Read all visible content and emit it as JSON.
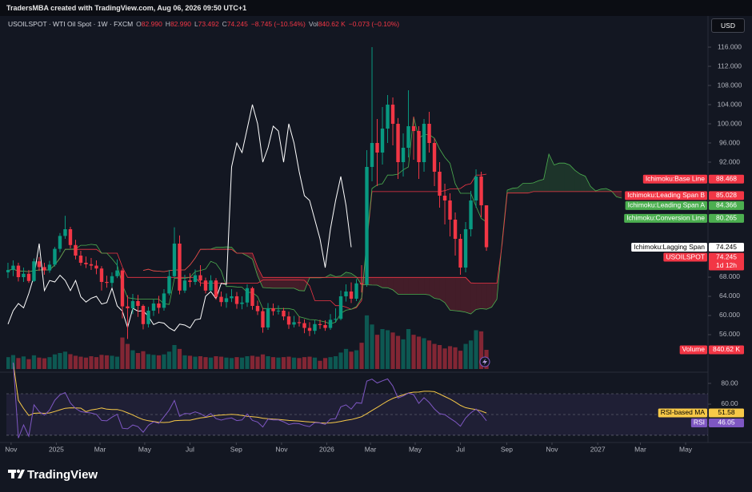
{
  "header": {
    "credit": "TradersMBA created with TradingView.com, Aug 06, 2026 09:50 UTC+1",
    "currency": "USD",
    "brand": "TradingView"
  },
  "chart_data": {
    "type": "candlestick",
    "title": "USOILSPOT · WTI Oil Spot · 1W · FXCM",
    "legend_fields": [
      {
        "key": "O",
        "text": "82.990"
      },
      {
        "key": "H",
        "text": "82.990"
      },
      {
        "key": "L",
        "text": "73.492"
      },
      {
        "key": "C",
        "text": "74.245"
      },
      {
        "text": "−8.745 (−10.54%)"
      },
      {
        "key": "Vol",
        "text": "840.62 K"
      },
      {
        "text": "−0.073 (−0.10%)"
      }
    ],
    "open": [
      69.0,
      69.5,
      70.4,
      68.0,
      68.7,
      67.2,
      71.3,
      70.1,
      69.4,
      70.6,
      73.9,
      76.6,
      78.0,
      74.7,
      72.5,
      71.0,
      70.7,
      70.4,
      69.8,
      67.0,
      66.8,
      68.2,
      69.4,
      61.9,
      61.5,
      63.0,
      62.0,
      58.2,
      61.0,
      62.5,
      61.6,
      64.6,
      68.2,
      75.0,
      65.2,
      67.3,
      67.0,
      68.4,
      67.3,
      65.2,
      67.3,
      63.9,
      62.8,
      63.6,
      64.0,
      62.4,
      62.7,
      65.7,
      62.0,
      60.9,
      57.5,
      61.5,
      60.9,
      61.0,
      59.8,
      58.1,
      58.6,
      58.4,
      57.4,
      56.8,
      58.2,
      58.0,
      57.4,
      59.1,
      59.3,
      64.0,
      65.0,
      63.5,
      66.7,
      66.5,
      91.0,
      96.0,
      94.0,
      99.0,
      104.0,
      100.0,
      92.0,
      95.0,
      99.5,
      98.5,
      92.0,
      100.0,
      96.0,
      90.0,
      85.0,
      84.0,
      80.0,
      76.0,
      70.0,
      78.0,
      84.0,
      89.0,
      82.99
    ],
    "high": [
      71.0,
      71.5,
      71.0,
      70.0,
      69.5,
      71.9,
      72.2,
      71.0,
      71.4,
      74.3,
      77.2,
      80.8,
      78.5,
      75.8,
      73.5,
      72.3,
      72.0,
      71.5,
      70.3,
      68.3,
      69.0,
      71.7,
      69.8,
      64.2,
      64.5,
      64.3,
      62.3,
      61.8,
      63.4,
      64.1,
      65.5,
      69.5,
      78.4,
      76.7,
      68.5,
      68.8,
      69.6,
      70.5,
      67.9,
      68.4,
      67.8,
      65.0,
      64.6,
      65.5,
      64.9,
      64.0,
      66.5,
      66.0,
      63.1,
      61.6,
      62.6,
      62.5,
      62.1,
      61.6,
      60.8,
      59.9,
      59.8,
      59.2,
      58.6,
      59.0,
      59.1,
      59.0,
      60.3,
      61.5,
      65.2,
      66.5,
      66.9,
      67.6,
      70.5,
      94.5,
      116.0,
      101.0,
      103.5,
      106.0,
      105.5,
      101.2,
      98.0,
      107.0,
      101.5,
      99.5,
      101.0,
      102.5,
      97.0,
      92.0,
      87.5,
      85.5,
      81.5,
      77.0,
      79.5,
      86.0,
      90.5,
      90.0,
      82.99
    ],
    "low": [
      67.8,
      68.2,
      67.1,
      67.0,
      66.8,
      67.0,
      69.3,
      68.5,
      68.9,
      70.2,
      73.2,
      76.0,
      74.0,
      71.7,
      70.4,
      69.9,
      69.5,
      68.6,
      65.2,
      65.8,
      66.0,
      67.8,
      59.4,
      55.1,
      60.3,
      59.7,
      57.1,
      57.5,
      59.9,
      60.4,
      61.0,
      64.2,
      67.9,
      64.4,
      64.7,
      65.9,
      66.4,
      66.1,
      64.6,
      65.0,
      63.3,
      61.9,
      61.6,
      62.8,
      61.4,
      61.3,
      61.8,
      61.2,
      60.1,
      56.4,
      57.0,
      60.0,
      60.2,
      59.0,
      57.2,
      57.5,
      57.7,
      56.3,
      55.7,
      56.1,
      57.2,
      56.8,
      57.0,
      58.5,
      59.0,
      62.9,
      62.6,
      63.0,
      64.8,
      66.0,
      88.0,
      87.0,
      91.5,
      96.0,
      95.5,
      88.5,
      89.0,
      93.0,
      92.5,
      88.5,
      90.0,
      94.0,
      87.0,
      82.5,
      79.0,
      76.5,
      72.5,
      68.5,
      69.0,
      76.5,
      82.5,
      80.5,
      73.492
    ],
    "close": [
      69.5,
      70.4,
      68.0,
      68.7,
      67.2,
      71.3,
      70.1,
      69.4,
      70.6,
      73.9,
      76.6,
      78.0,
      74.7,
      72.5,
      71.0,
      70.7,
      70.4,
      69.8,
      67.0,
      66.8,
      68.2,
      69.4,
      61.9,
      61.5,
      63.0,
      62.0,
      58.2,
      61.0,
      62.5,
      61.6,
      64.6,
      68.2,
      75.0,
      65.2,
      67.3,
      67.0,
      68.4,
      67.3,
      65.2,
      67.3,
      63.9,
      62.8,
      63.6,
      64.0,
      62.4,
      62.7,
      65.7,
      62.0,
      60.9,
      57.5,
      61.5,
      60.9,
      61.0,
      59.8,
      58.1,
      58.6,
      58.4,
      57.4,
      56.8,
      58.2,
      58.0,
      57.4,
      59.1,
      59.3,
      64.0,
      65.0,
      63.5,
      66.7,
      66.5,
      91.0,
      96.0,
      94.0,
      99.0,
      104.0,
      100.0,
      92.0,
      95.0,
      99.5,
      98.5,
      92.0,
      100.0,
      96.0,
      90.0,
      85.0,
      84.0,
      80.0,
      76.0,
      70.0,
      78.0,
      84.0,
      89.0,
      82.99,
      74.245
    ],
    "volume": [
      520,
      610,
      480,
      550,
      430,
      600,
      500,
      470,
      520,
      640,
      700,
      760,
      650,
      580,
      540,
      500,
      560,
      520,
      620,
      600,
      580,
      540,
      1380,
      1100,
      820,
      700,
      780,
      650,
      620,
      600,
      640,
      760,
      1050,
      880,
      600,
      580,
      540,
      560,
      520,
      500,
      560,
      540,
      500,
      480,
      520,
      500,
      560,
      580,
      540,
      640,
      560,
      520,
      500,
      520,
      540,
      500,
      480,
      520,
      540,
      500,
      360,
      480,
      520,
      560,
      720,
      880,
      760,
      820,
      1150,
      2350,
      1950,
      1500,
      1750,
      1700,
      1600,
      1450,
      1300,
      1750,
      1500,
      1420,
      1350,
      1250,
      1100,
      1050,
      900,
      1000,
      950,
      800,
      1100,
      1250,
      1700,
      1650,
      840.62
    ],
    "up_color": "#089981",
    "down_color": "#f23645",
    "xlim": [
      -0.3,
      134.6
    ],
    "xticks": [
      {
        "value": 0.6,
        "label": "Nov"
      },
      {
        "value": 9.3,
        "label": "2025"
      },
      {
        "value": 17.7,
        "label": "Mar"
      },
      {
        "value": 26.3,
        "label": "May"
      },
      {
        "value": 35,
        "label": "Jul"
      },
      {
        "value": 43.9,
        "label": "Sep"
      },
      {
        "value": 52.6,
        "label": "Nov"
      },
      {
        "value": 61.3,
        "label": "2026"
      },
      {
        "value": 69.7,
        "label": "Mar"
      },
      {
        "value": 78.3,
        "label": "May"
      },
      {
        "value": 87,
        "label": "Jul"
      },
      {
        "value": 95.9,
        "label": "Sep"
      },
      {
        "value": 104.6,
        "label": "Nov"
      },
      {
        "value": 113.4,
        "label": "2027"
      },
      {
        "value": 121.6,
        "label": "Mar"
      },
      {
        "value": 130.3,
        "label": "May"
      }
    ],
    "ylim": [
      48.83,
      119.17
    ],
    "yticks": [
      {
        "value": 116,
        "label": "116.000"
      },
      {
        "value": 112,
        "label": "112.000"
      },
      {
        "value": 108,
        "label": "108.000"
      },
      {
        "value": 104,
        "label": "104.000"
      },
      {
        "value": 100,
        "label": "100.000"
      },
      {
        "value": 96,
        "label": "96.000"
      },
      {
        "value": 92,
        "label": "92.000"
      },
      {
        "value": 68,
        "label": "68.000"
      },
      {
        "value": 64,
        "label": "64.000"
      },
      {
        "value": 60,
        "label": "60.000"
      },
      {
        "value": 56,
        "label": "56.000"
      }
    ],
    "grid": false,
    "ichimoku_periods": [
      9,
      26,
      52,
      26
    ],
    "ichimoku_colors": {
      "conversion": "#4caf50",
      "base": "#f23645",
      "lagging": "#ffffff",
      "span_a": "#4caf50",
      "span_b": "#f23645",
      "cloud_up": "rgba(67,160,71,0.22)",
      "cloud_down": "rgba(242,54,69,0.22)"
    },
    "price_labels": [
      {
        "name": "Ichimoku:Base Line",
        "value": 88.468,
        "color": "#f23645"
      },
      {
        "name": "Ichimoku:Leading Span B",
        "value": 85.028,
        "color": "#f23645"
      },
      {
        "name": "Ichimoku:Leading Span A",
        "value": 84.366,
        "color": "#4caf50"
      },
      {
        "name": "Ichimoku:Conversion Line",
        "value": 80.265,
        "color": "#4caf50"
      },
      {
        "name": "Ichimoku:Lagging Span",
        "value": 74.245,
        "color": "#ffffff"
      },
      {
        "name": "USOILSPOT",
        "value": 74.245,
        "sub": "1d 12h",
        "color": "#f23645"
      }
    ],
    "volume_label": {
      "name": "Volume",
      "value": 840.62,
      "label": "840.62 K",
      "color": "#f23645"
    },
    "rsi": {
      "period": 14,
      "ma_period": 14,
      "color": "#7e57c2",
      "ma_color": "#f7c948",
      "ylim": [
        24.6,
        87.7
      ],
      "levels": [
        70,
        50,
        30
      ],
      "yticks": [
        {
          "value": 80,
          "label": "80.00"
        },
        {
          "value": 60,
          "label": "60.00"
        },
        {
          "value": 40,
          "label": "40.00"
        }
      ],
      "labels": [
        {
          "name": "RSI-based MA",
          "value": 51.58,
          "color": "#f7c948"
        },
        {
          "name": "RSI",
          "value": 46.05,
          "color": "#7e57c2"
        }
      ]
    }
  }
}
